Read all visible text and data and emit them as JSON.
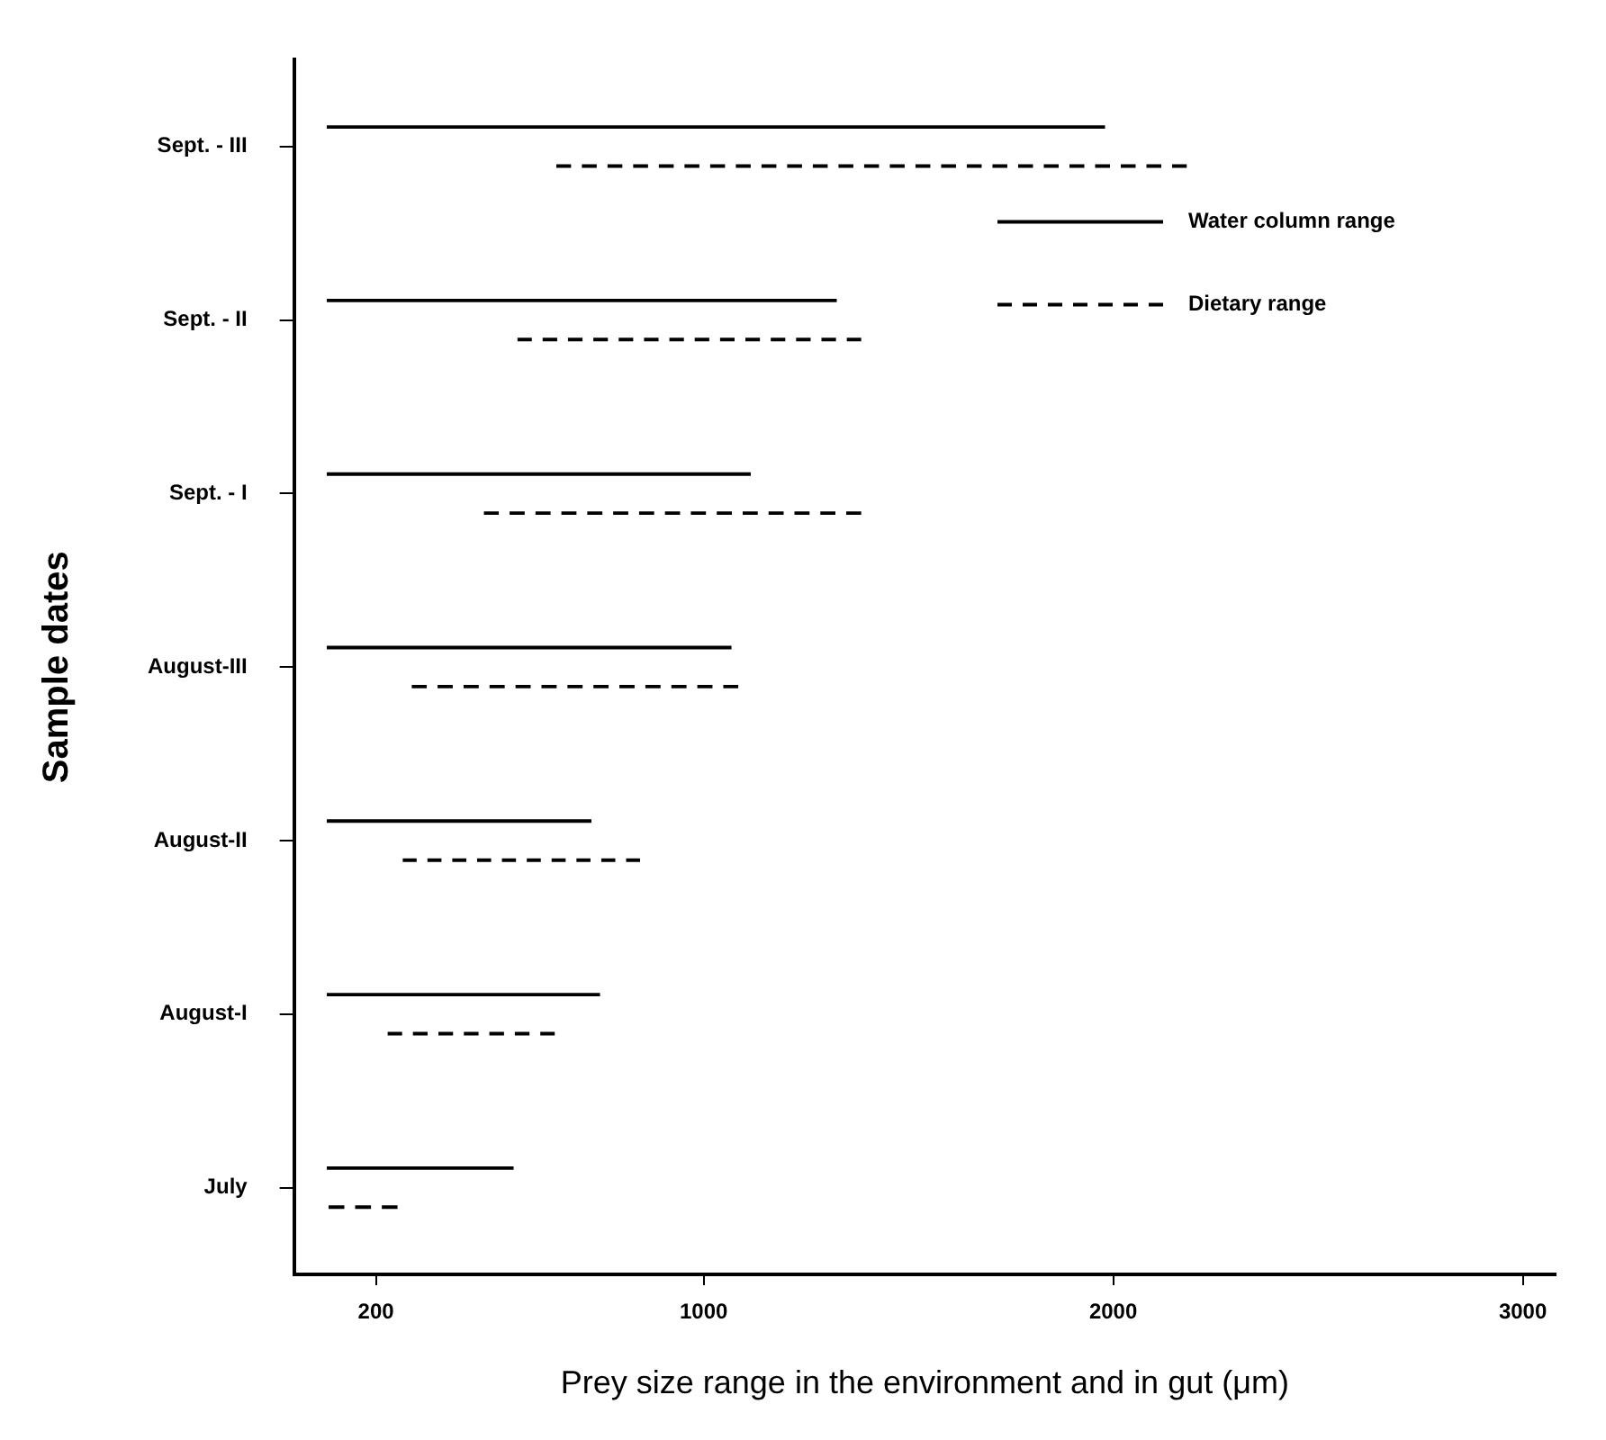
{
  "chart_data": {
    "type": "bar",
    "orientation": "horizontal",
    "xlabel": "Prey size range in the environment and in gut (μm)",
    "ylabel": "Sample dates",
    "categories": [
      "Sept. - III",
      "Sept. - II",
      "Sept. - I",
      "August-III",
      "August-II",
      "August-I",
      "July"
    ],
    "series": [
      {
        "name": "Water column range",
        "color": "#000000",
        "line_style": "solid",
        "base": [
          80,
          80,
          80,
          80,
          80,
          80,
          80
        ],
        "values": [
          1900,
          1245,
          1035,
          988,
          646,
          667,
          456
        ]
      },
      {
        "name": "Dietary range",
        "color": "#000000",
        "line_style": "dashed",
        "base": [
          640,
          545,
          463,
          287,
          265,
          228,
          84
        ],
        "values": [
          1540,
          840,
          922,
          798,
          580,
          409,
          169
        ]
      }
    ],
    "xlim": [
      0,
      3080
    ],
    "xticks": [
      200,
      1000,
      2000,
      3000
    ],
    "legend": "top right"
  }
}
